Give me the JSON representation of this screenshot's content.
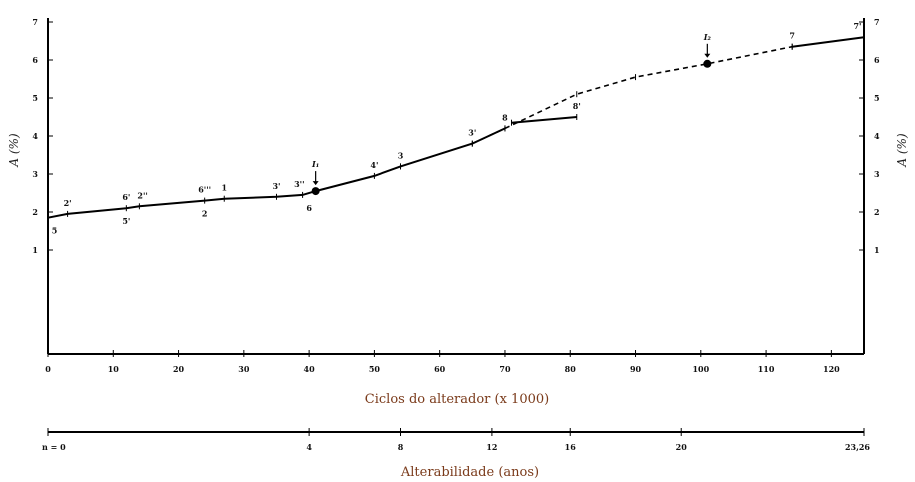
{
  "chart_data": {
    "type": "line",
    "xlabel": "Ciclos do alterador (x 1000)",
    "ylabel_left": "A (%)",
    "ylabel_right": "A (%)",
    "xlim": [
      0,
      125
    ],
    "ylim": [
      0,
      7
    ],
    "x_ticks": [
      "0",
      "10",
      "20",
      "30",
      "40",
      "50",
      "60",
      "70",
      "80",
      "90",
      "100",
      "110",
      "120"
    ],
    "y_ticks_left": [
      "1",
      "2",
      "3",
      "4",
      "5",
      "6",
      "7"
    ],
    "y_ticks_right": [
      "1",
      "2",
      "3",
      "4",
      "5",
      "6",
      "7"
    ],
    "series": [
      {
        "style": "solid",
        "points": [
          {
            "x": 0,
            "y": 1.85
          },
          {
            "x": 3,
            "y": 1.95
          },
          {
            "x": 12,
            "y": 2.1
          },
          {
            "x": 14,
            "y": 2.15
          },
          {
            "x": 24,
            "y": 2.3
          },
          {
            "x": 27,
            "y": 2.35
          },
          {
            "x": 35,
            "y": 2.4
          },
          {
            "x": 39,
            "y": 2.45
          },
          {
            "x": 41,
            "y": 2.55
          },
          {
            "x": 50,
            "y": 2.95
          },
          {
            "x": 54,
            "y": 3.2
          }
        ]
      },
      {
        "style": "solid",
        "points": [
          {
            "x": 54,
            "y": 3.2
          },
          {
            "x": 65,
            "y": 3.8
          },
          {
            "x": 70,
            "y": 4.2
          }
        ]
      },
      {
        "style": "solid",
        "points": [
          {
            "x": 71,
            "y": 4.35
          },
          {
            "x": 81,
            "y": 4.5
          }
        ]
      },
      {
        "style": "dashed",
        "points": [
          {
            "x": 65,
            "y": 3.8
          },
          {
            "x": 70,
            "y": 4.2
          },
          {
            "x": 81,
            "y": 5.1
          },
          {
            "x": 90,
            "y": 5.55
          },
          {
            "x": 101,
            "y": 5.9
          },
          {
            "x": 114,
            "y": 6.35
          }
        ]
      },
      {
        "style": "solid",
        "points": [
          {
            "x": 114,
            "y": 6.35
          },
          {
            "x": 125,
            "y": 6.6
          }
        ]
      }
    ],
    "point_labels": [
      {
        "text": "2'",
        "x": 3,
        "y": 1.95,
        "pos": "above"
      },
      {
        "text": "5",
        "x": 1,
        "y": 1.85,
        "pos": "below"
      },
      {
        "text": "6'",
        "x": 12,
        "y": 2.1,
        "pos": "above"
      },
      {
        "text": "5'",
        "x": 12,
        "y": 2.1,
        "pos": "below"
      },
      {
        "text": "2''",
        "x": 14.5,
        "y": 2.15,
        "pos": "above"
      },
      {
        "text": "6'''",
        "x": 24,
        "y": 2.3,
        "pos": "above"
      },
      {
        "text": "2",
        "x": 24,
        "y": 2.3,
        "pos": "below"
      },
      {
        "text": "1",
        "x": 27,
        "y": 2.35,
        "pos": "above"
      },
      {
        "text": "3'",
        "x": 35,
        "y": 2.4,
        "pos": "above"
      },
      {
        "text": "3''",
        "x": 38.5,
        "y": 2.45,
        "pos": "above"
      },
      {
        "text": "6",
        "x": 40,
        "y": 2.45,
        "pos": "below"
      },
      {
        "text": "4'",
        "x": 50,
        "y": 2.95,
        "pos": "above"
      },
      {
        "text": "3",
        "x": 54,
        "y": 3.2,
        "pos": "above"
      },
      {
        "text": "3'",
        "x": 65,
        "y": 3.8,
        "pos": "above"
      },
      {
        "text": "8",
        "x": 70,
        "y": 4.2,
        "pos": "above"
      },
      {
        "text": "8'",
        "x": 81,
        "y": 4.5,
        "pos": "above"
      },
      {
        "text": "7",
        "x": 114,
        "y": 6.35,
        "pos": "above"
      },
      {
        "text": "7'",
        "x": 124,
        "y": 6.6,
        "pos": "above"
      }
    ],
    "markers": [
      {
        "label": "I₁",
        "x": 41,
        "y": 2.55
      },
      {
        "label": "I₂",
        "x": 101,
        "y": 5.9
      }
    ],
    "secondary_axis": {
      "label": "Alterabilidade (anos)",
      "ticks": [
        {
          "text": "n = 0",
          "cycles": 0
        },
        {
          "text": "4",
          "cycles": 40
        },
        {
          "text": "8",
          "cycles": 54
        },
        {
          "text": "12",
          "cycles": 68
        },
        {
          "text": "16",
          "cycles": 80
        },
        {
          "text": "20",
          "cycles": 97
        },
        {
          "text": "23,26",
          "cycles": 125
        }
      ]
    }
  }
}
